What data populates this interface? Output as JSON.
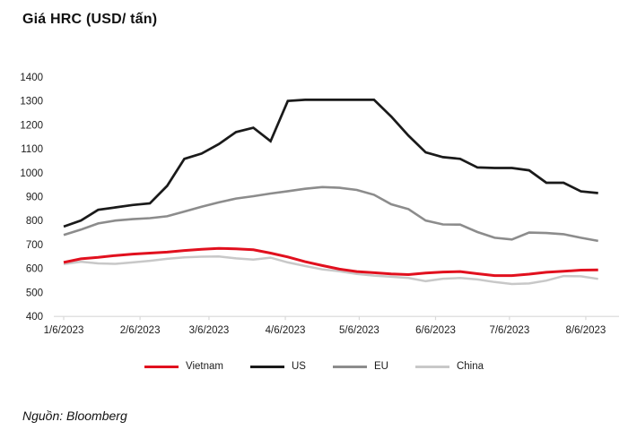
{
  "title": "Giá HRC (USD/ tấn)",
  "source": "Nguồn: Bloomberg",
  "legend": {
    "items": [
      {
        "label": "Vietnam",
        "color": "#e1101e"
      },
      {
        "label": "US",
        "color": "#1a1a1a"
      },
      {
        "label": "EU",
        "color": "#8c8c8c"
      },
      {
        "label": "China",
        "color": "#c8c8c8"
      }
    ]
  },
  "chart_data": {
    "type": "line",
    "title": "Giá HRC (USD/ tấn)",
    "ylabel": "USD/ tấn",
    "ylim": [
      400,
      1400
    ],
    "y_ticks": [
      400,
      500,
      600,
      700,
      800,
      900,
      1000,
      1100,
      1200,
      1300,
      1400
    ],
    "x_tick_labels": [
      "1/6/2023",
      "2/6/2023",
      "3/6/2023",
      "4/6/2023",
      "5/6/2023",
      "6/6/2023",
      "7/6/2023",
      "8/6/2023"
    ],
    "x_tick_day_offsets": [
      0,
      31,
      59,
      90,
      120,
      151,
      181,
      212
    ],
    "point_interval_days": 7,
    "grid": false,
    "legend_position": "bottom-center",
    "series": [
      {
        "name": "China",
        "color": "#c8c8c8",
        "width": 2.5,
        "values": [
          618,
          628,
          621,
          619,
          625,
          632,
          640,
          646,
          649,
          650,
          642,
          637,
          645,
          625,
          610,
          596,
          588,
          577,
          570,
          565,
          560,
          547,
          557,
          560,
          554,
          543,
          535,
          537,
          549,
          568,
          567,
          556
        ]
      },
      {
        "name": "EU",
        "color": "#8c8c8c",
        "width": 2.6,
        "values": [
          740,
          762,
          788,
          800,
          806,
          810,
          818,
          838,
          858,
          876,
          892,
          902,
          913,
          923,
          933,
          940,
          937,
          928,
          908,
          868,
          848,
          800,
          784,
          783,
          752,
          728,
          721,
          750,
          748,
          743,
          728,
          715
        ]
      },
      {
        "name": "US",
        "color": "#1a1a1a",
        "width": 2.7,
        "values": [
          775,
          800,
          845,
          855,
          865,
          872,
          945,
          1058,
          1080,
          1120,
          1170,
          1188,
          1132,
          1300,
          1305,
          1305,
          1305,
          1305,
          1305,
          1235,
          1155,
          1085,
          1065,
          1058,
          1022,
          1020,
          1020,
          1010,
          958,
          958,
          922,
          915
        ]
      },
      {
        "name": "Vietnam",
        "color": "#e1101e",
        "width": 3,
        "values": [
          625,
          640,
          646,
          654,
          660,
          664,
          668,
          675,
          680,
          684,
          682,
          678,
          664,
          648,
          628,
          612,
          597,
          587,
          582,
          577,
          574,
          581,
          585,
          587,
          578,
          570,
          570,
          576,
          584,
          588,
          593,
          594
        ]
      }
    ],
    "axis_color": "#d9d9d9"
  }
}
